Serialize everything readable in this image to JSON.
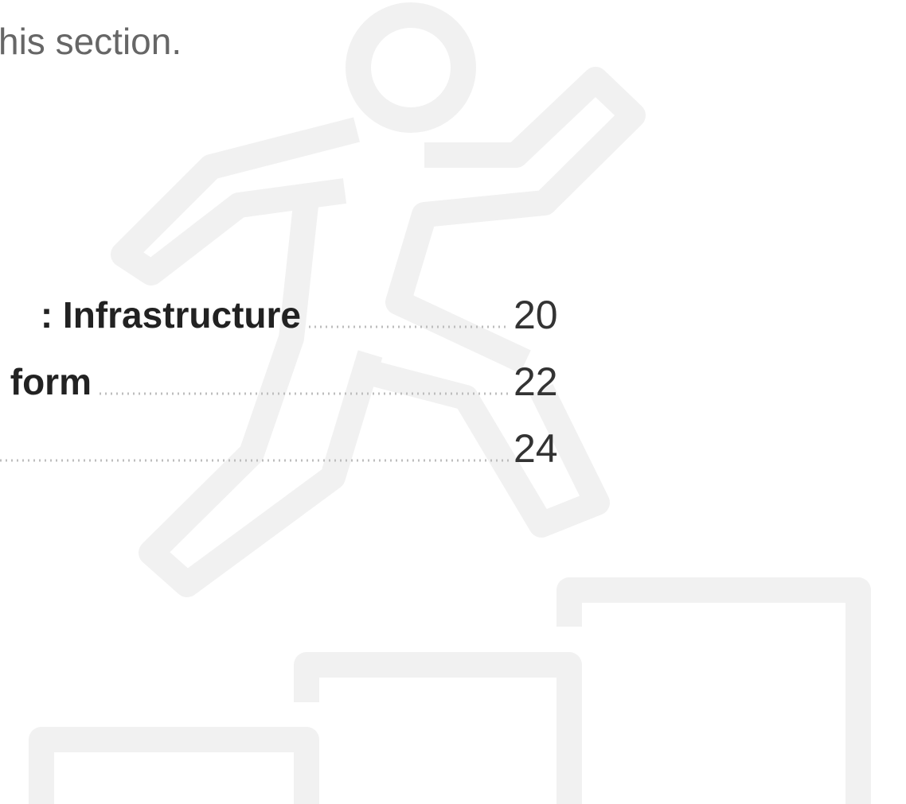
{
  "intro": "his section.",
  "toc": [
    {
      "title": ": Infrastructure",
      "page": 20
    },
    {
      "title": "form",
      "page": 22
    },
    {
      "page": 24
    }
  ]
}
